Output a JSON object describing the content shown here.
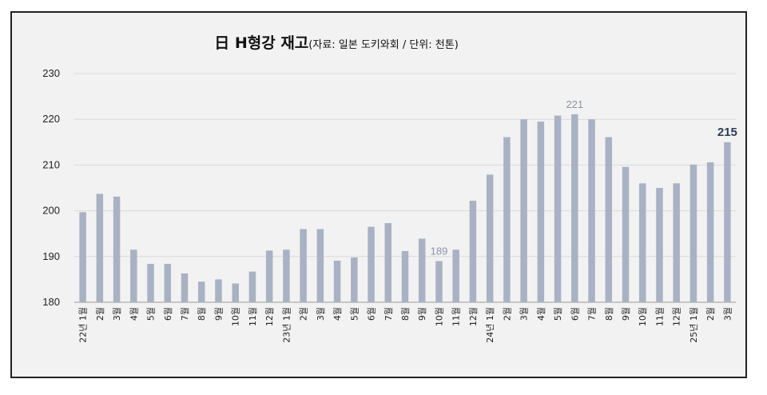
{
  "chart_data": {
    "type": "bar",
    "title_main": "日 H형강 재고",
    "title_sub": "(자료: 일본 도키와회 / 단위: 천톤)",
    "xlabel": "",
    "ylabel": "",
    "ylim": [
      180,
      230
    ],
    "yticks": [
      180,
      190,
      200,
      210,
      220,
      230
    ],
    "grid": true,
    "colors": {
      "bar": "#a9b2c4",
      "highlight_label": "#2f3b55",
      "muted_label": "#8a95aa"
    },
    "categories": [
      "22년 1월",
      "2월",
      "3월",
      "4월",
      "5월",
      "6월",
      "7월",
      "8월",
      "9월",
      "10월",
      "11월",
      "12월",
      "23년 1월",
      "2월",
      "3월",
      "4월",
      "5월",
      "6월",
      "7월",
      "8월",
      "9월",
      "10월",
      "11월",
      "12월",
      "24년 1월",
      "2월",
      "3월",
      "4월",
      "5월",
      "6월",
      "7월",
      "8월",
      "9월",
      "10월",
      "11월",
      "12월",
      "25년 1월",
      "2월",
      "3월"
    ],
    "values": [
      199.7,
      203.7,
      203.1,
      191.5,
      188.4,
      188.4,
      186.3,
      184.5,
      185.0,
      184.1,
      186.7,
      191.3,
      191.5,
      196.0,
      196.0,
      189.1,
      189.8,
      196.5,
      197.3,
      191.2,
      193.9,
      189.0,
      191.5,
      202.2,
      207.9,
      216.1,
      220.0,
      219.5,
      220.8,
      221.1,
      220.0,
      216.1,
      209.6,
      206.0,
      205.0,
      206.0,
      210.1,
      210.6,
      215.0
    ],
    "annotations": [
      {
        "index": 21,
        "text": "189",
        "style": "muted"
      },
      {
        "index": 29,
        "text": "221",
        "style": "muted"
      },
      {
        "index": 38,
        "text": "215",
        "style": "bold"
      }
    ]
  }
}
